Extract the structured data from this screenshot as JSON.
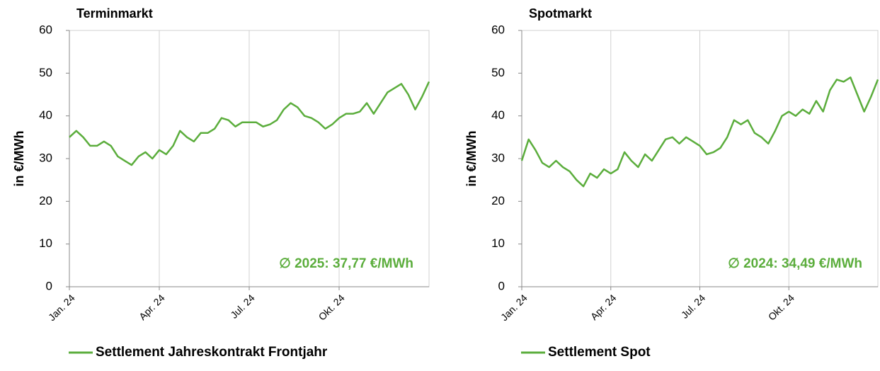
{
  "chart_data": [
    {
      "type": "line",
      "title": "Terminmarkt",
      "y_label": "in €/MWh",
      "annotation": "∅ 2025: 37,77 €/MWh",
      "categories": [
        "Jan. 24",
        null,
        null,
        null,
        null,
        null,
        null,
        null,
        null,
        null,
        null,
        null,
        null,
        "Apr. 24",
        null,
        null,
        null,
        null,
        null,
        null,
        null,
        null,
        null,
        null,
        null,
        null,
        "Jul. 24",
        null,
        null,
        null,
        null,
        null,
        null,
        null,
        null,
        null,
        null,
        null,
        null,
        "Okt. 24",
        null,
        null,
        null,
        null,
        null,
        null,
        null,
        null,
        null,
        null,
        null,
        null,
        null
      ],
      "series": [
        {
          "name": "Settlement Jahreskontrakt Frontjahr",
          "color": "#5bad3c",
          "values": [
            35,
            36.5,
            35,
            33,
            33,
            34,
            33,
            30.5,
            29.5,
            28.5,
            30.5,
            31.5,
            30,
            32,
            31,
            33,
            36.5,
            35,
            34,
            36,
            36,
            37,
            39.5,
            39,
            37.5,
            38.5,
            38.5,
            38.5,
            37.5,
            38,
            39,
            41.5,
            43,
            42,
            40,
            39.5,
            38.5,
            37,
            38,
            39.5,
            40.5,
            40.5,
            41,
            43,
            40.5,
            43,
            45.5,
            46.5,
            47.5,
            45,
            41.5,
            44.5,
            48
          ]
        }
      ],
      "ylim": [
        0,
        60
      ],
      "yticks": [
        0,
        10,
        20,
        30,
        40,
        50,
        60
      ],
      "grid": true
    },
    {
      "type": "line",
      "title": "Spotmarkt",
      "y_label": "in €/MWh",
      "annotation": "∅ 2024: 34,49 €/MWh",
      "categories": [
        "Jan. 24",
        null,
        null,
        null,
        null,
        null,
        null,
        null,
        null,
        null,
        null,
        null,
        null,
        "Apr. 24",
        null,
        null,
        null,
        null,
        null,
        null,
        null,
        null,
        null,
        null,
        null,
        null,
        "Jul. 24",
        null,
        null,
        null,
        null,
        null,
        null,
        null,
        null,
        null,
        null,
        null,
        null,
        "Okt. 24",
        null,
        null,
        null,
        null,
        null,
        null,
        null,
        null,
        null,
        null,
        null,
        null,
        null
      ],
      "series": [
        {
          "name": "Settlement Spot",
          "color": "#5bad3c",
          "values": [
            29.5,
            34.5,
            32,
            29,
            28,
            29.5,
            28,
            27,
            25,
            23.5,
            26.5,
            25.5,
            27.5,
            26.5,
            27.5,
            31.5,
            29.5,
            28,
            31,
            29.5,
            32,
            34.5,
            35,
            33.5,
            35,
            34,
            33,
            31,
            31.5,
            32.5,
            35,
            39,
            38,
            39,
            36,
            35,
            33.5,
            36.5,
            40,
            41,
            40,
            41.5,
            40.5,
            43.5,
            41,
            46,
            48.5,
            48,
            49,
            45,
            41,
            44.5,
            48.5
          ]
        }
      ],
      "ylim": [
        0,
        60
      ],
      "yticks": [
        0,
        10,
        20,
        30,
        40,
        50,
        60
      ],
      "grid": true
    }
  ]
}
